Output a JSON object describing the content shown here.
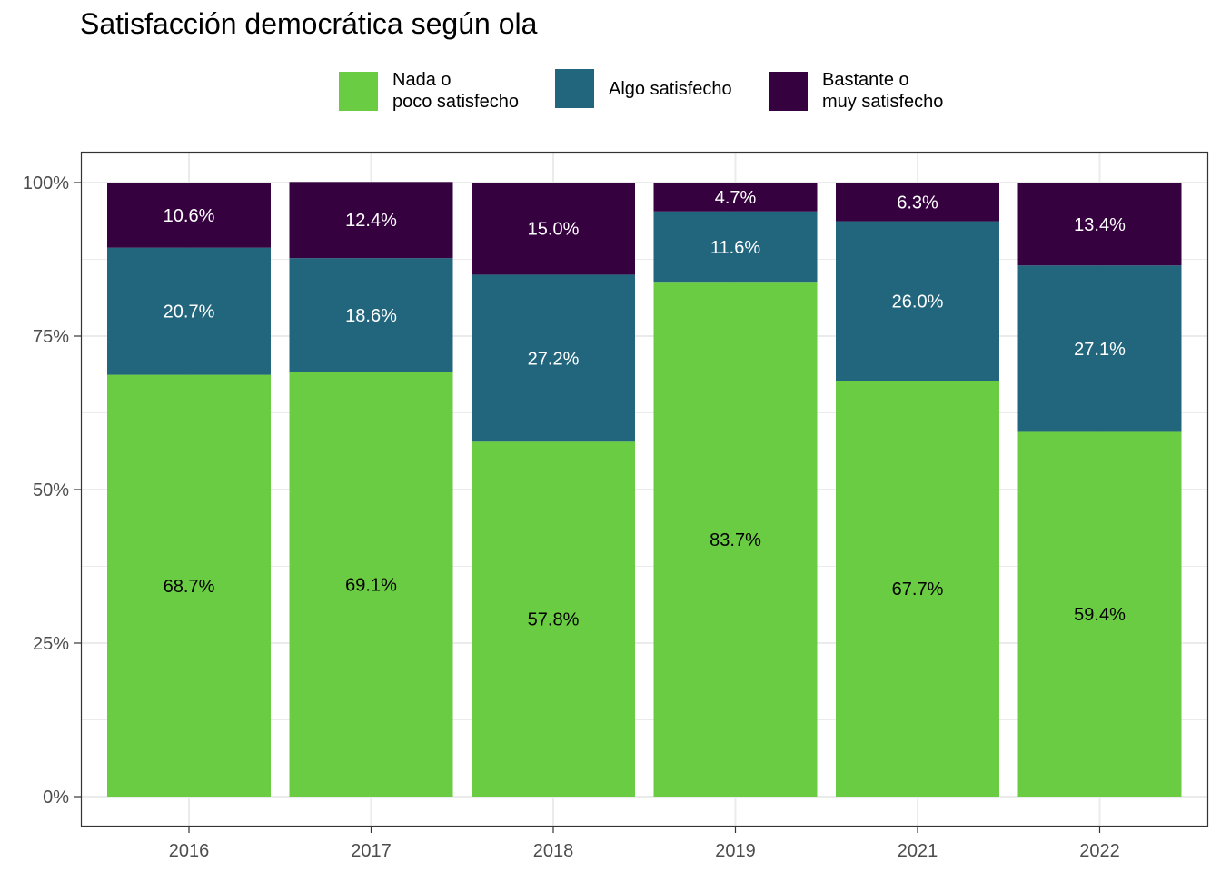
{
  "title": "Satisfacción democrática según ola",
  "legend": [
    {
      "label": "Nada o\npoco satisfecho",
      "color": "#6ACC42"
    },
    {
      "label": "Algo satisfecho",
      "color": "#22667E"
    },
    {
      "label": "Bastante o\nmuy satisfecho",
      "color": "#35013F"
    }
  ],
  "chart_data": {
    "type": "bar",
    "stacked": true,
    "title": "Satisfacción democrática según ola",
    "xlabel": "",
    "ylabel": "",
    "categories": [
      "2016",
      "2017",
      "2018",
      "2019",
      "2021",
      "2022"
    ],
    "series": [
      {
        "name": "Nada o poco satisfecho",
        "color": "#6ACC42",
        "label_color": "#000000",
        "values": [
          68.7,
          69.1,
          57.8,
          83.7,
          67.7,
          59.4
        ],
        "labels": [
          "68.7%",
          "69.1%",
          "57.8%",
          "83.7%",
          "67.7%",
          "59.4%"
        ]
      },
      {
        "name": "Algo satisfecho",
        "color": "#22667E",
        "label_color": "#ffffff",
        "values": [
          20.7,
          18.6,
          27.2,
          11.6,
          26.0,
          27.1
        ],
        "labels": [
          "20.7%",
          "18.6%",
          "27.2%",
          "11.6%",
          "26.0%",
          "27.1%"
        ]
      },
      {
        "name": "Bastante o muy satisfecho",
        "color": "#35013F",
        "label_color": "#ffffff",
        "values": [
          10.6,
          12.4,
          15.0,
          4.7,
          6.3,
          13.4
        ],
        "labels": [
          "10.6%",
          "12.4%",
          "15.0%",
          "4.7%",
          "6.3%",
          "13.4%"
        ]
      }
    ],
    "ylim": [
      0,
      100
    ],
    "yticks": [
      0,
      25,
      50,
      75,
      100
    ],
    "ytick_labels": [
      "0%",
      "25%",
      "50%",
      "75%",
      "100%"
    ],
    "grid": true,
    "legend_position": "top"
  }
}
